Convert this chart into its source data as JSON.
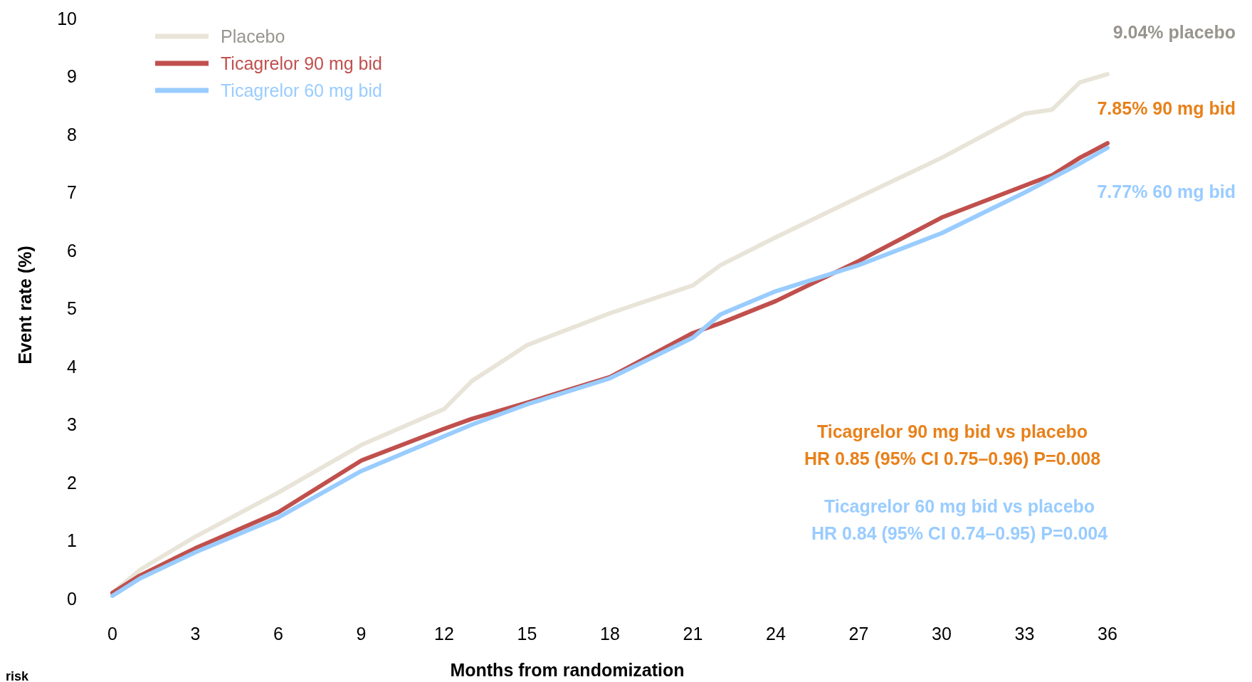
{
  "chart_data": {
    "type": "line",
    "xlabel": "Months from randomization",
    "ylabel": "Event rate (%)",
    "x": [
      0,
      1,
      3,
      6,
      9,
      12,
      13,
      15,
      18,
      21,
      22,
      24,
      27,
      30,
      33,
      34,
      35,
      36
    ],
    "series": [
      {
        "name": "Placebo",
        "color": "#e8e4d8",
        "values": [
          0.1,
          0.5,
          1.07,
          1.83,
          2.65,
          3.27,
          3.75,
          4.37,
          4.92,
          5.4,
          5.75,
          6.23,
          6.92,
          7.6,
          8.36,
          8.43,
          8.9,
          9.04
        ]
      },
      {
        "name": "Ticagrelor 90 mg bid",
        "color": "#c0504d",
        "values": [
          0.1,
          0.4,
          0.87,
          1.49,
          2.38,
          2.93,
          3.1,
          3.38,
          3.82,
          4.58,
          4.75,
          5.13,
          5.82,
          6.57,
          7.12,
          7.3,
          7.6,
          7.85
        ]
      },
      {
        "name": "Ticagrelor 60 mg bid",
        "color": "#99ccff",
        "values": [
          0.05,
          0.35,
          0.8,
          1.4,
          2.2,
          2.8,
          3.0,
          3.35,
          3.8,
          4.5,
          4.9,
          5.3,
          5.75,
          6.3,
          7.0,
          7.25,
          7.5,
          7.77
        ]
      }
    ],
    "xlim": [
      0,
      36
    ],
    "xticks": [
      0,
      3,
      6,
      9,
      12,
      15,
      18,
      21,
      24,
      27,
      30,
      33,
      36
    ],
    "ylim": [
      0,
      10
    ],
    "yticks": [
      0,
      1,
      2,
      3,
      4,
      5,
      6,
      7,
      8,
      9,
      10
    ],
    "legend": "top left",
    "grid": false,
    "annotations": [
      "9.04% placebo",
      "7.85% 90 mg bid",
      "7.77% 60 mg bid",
      "Ticagrelor 90 mg bid vs placebo",
      "HR 0.85 (95% CI 0.75–0.96) P=0.008",
      "Ticagrelor 60 mg bid vs placebo",
      "HR 0.84 (95% CI 0.74–0.95) P=0.004",
      "risk"
    ]
  }
}
